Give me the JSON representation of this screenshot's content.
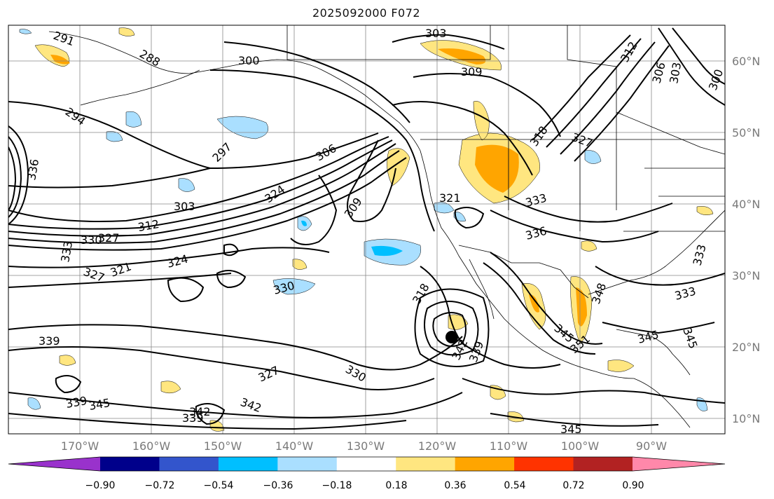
{
  "title": "2025092000 F072",
  "lat_labels": [
    "60°N",
    "50°N",
    "40°N",
    "30°N",
    "20°N",
    "10°N"
  ],
  "lon_labels": [
    "170°W",
    "160°W",
    "150°W",
    "140°W",
    "130°W",
    "120°W",
    "110°W",
    "100°W",
    "90°W"
  ],
  "colorbar": {
    "colors": [
      "#9932cc",
      "#00008b",
      "#3355cc",
      "#00bfff",
      "#aadfff",
      "#ffffff",
      "#ffe680",
      "#ffa500",
      "#ff3300",
      "#b22222",
      "#ff88aa"
    ],
    "tick_labels": [
      "−0.90",
      "−0.72",
      "−0.54",
      "−0.36",
      "−0.18",
      "0.18",
      "0.36",
      "0.54",
      "0.72",
      "0.90"
    ]
  },
  "contour_labels": [
    {
      "id": "c1",
      "text": "291"
    },
    {
      "id": "c2",
      "text": "288"
    },
    {
      "id": "c3",
      "text": "300"
    },
    {
      "id": "c4",
      "text": "303"
    },
    {
      "id": "c5",
      "text": "309"
    },
    {
      "id": "c6",
      "text": "312"
    },
    {
      "id": "c7",
      "text": "306"
    },
    {
      "id": "c8",
      "text": "303"
    },
    {
      "id": "c9",
      "text": "300"
    },
    {
      "id": "c10",
      "text": "294"
    },
    {
      "id": "c11",
      "text": "297"
    },
    {
      "id": "c12",
      "text": "336"
    },
    {
      "id": "c13",
      "text": "303"
    },
    {
      "id": "c14",
      "text": "312"
    },
    {
      "id": "c15",
      "text": "330"
    },
    {
      "id": "c16",
      "text": "327"
    },
    {
      "id": "c17",
      "text": "333"
    },
    {
      "id": "c18",
      "text": "327"
    },
    {
      "id": "c19",
      "text": "321"
    },
    {
      "id": "c20",
      "text": "324"
    },
    {
      "id": "c21",
      "text": "306"
    },
    {
      "id": "c22",
      "text": "324"
    },
    {
      "id": "c23",
      "text": "309"
    },
    {
      "id": "c24",
      "text": "330"
    },
    {
      "id": "c25",
      "text": "321"
    },
    {
      "id": "c26",
      "text": "318"
    },
    {
      "id": "c27",
      "text": "327"
    },
    {
      "id": "c28",
      "text": "333"
    },
    {
      "id": "c29",
      "text": "336"
    },
    {
      "id": "c30",
      "text": "318"
    },
    {
      "id": "c31",
      "text": "348"
    },
    {
      "id": "c32",
      "text": "342"
    },
    {
      "id": "c33",
      "text": "339"
    },
    {
      "id": "c34",
      "text": "345"
    },
    {
      "id": "c35",
      "text": "351"
    },
    {
      "id": "c36",
      "text": "345"
    },
    {
      "id": "c37",
      "text": "345"
    },
    {
      "id": "c38",
      "text": "339"
    },
    {
      "id": "c39",
      "text": "339"
    },
    {
      "id": "c40",
      "text": "345"
    },
    {
      "id": "c41",
      "text": "327"
    },
    {
      "id": "c42",
      "text": "330"
    },
    {
      "id": "c43",
      "text": "342"
    },
    {
      "id": "c44",
      "text": "342"
    },
    {
      "id": "c45",
      "text": "339"
    },
    {
      "id": "c46",
      "text": "345"
    },
    {
      "id": "c47",
      "text": "333"
    },
    {
      "id": "c48",
      "text": "333"
    }
  ]
}
